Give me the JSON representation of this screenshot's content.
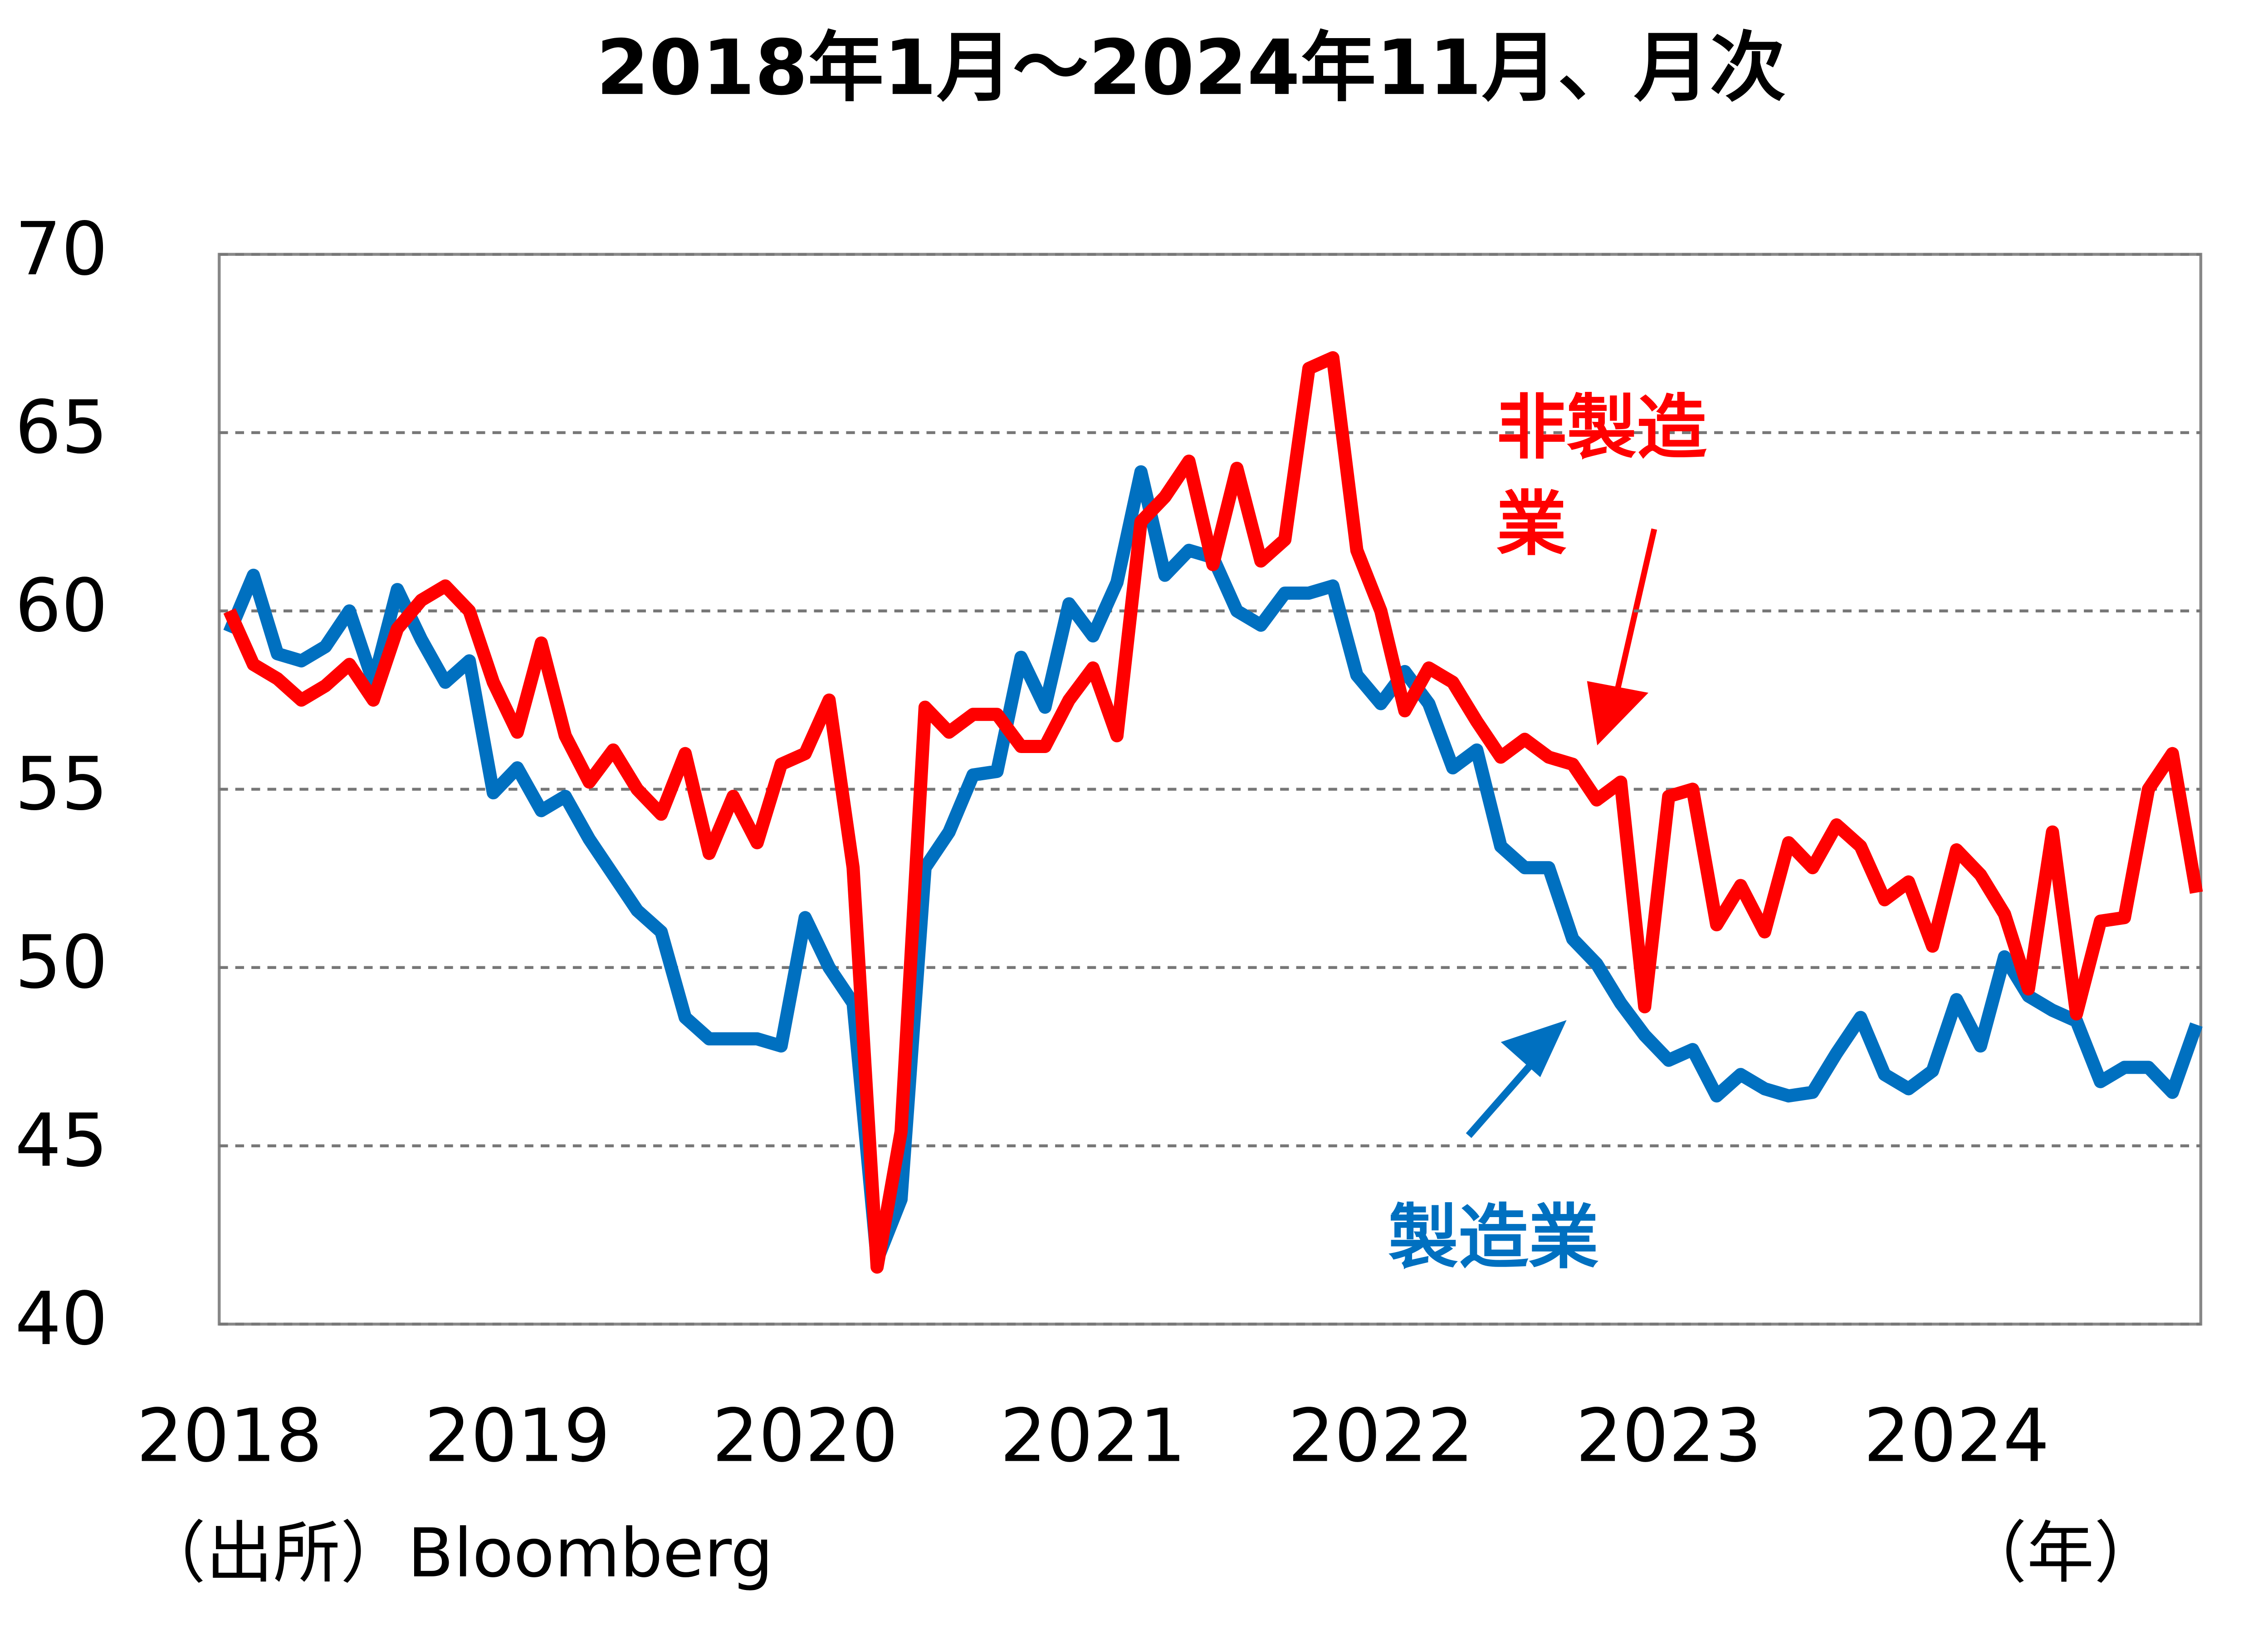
{
  "chart_data": {
    "type": "line",
    "title": "2018年1月～2024年11月、月次",
    "categories": [
      "2018",
      null,
      null,
      null,
      null,
      null,
      null,
      null,
      null,
      null,
      null,
      null,
      "2019",
      null,
      null,
      null,
      null,
      null,
      null,
      null,
      null,
      null,
      null,
      null,
      "2020",
      null,
      null,
      null,
      null,
      null,
      null,
      null,
      null,
      null,
      null,
      null,
      "2021",
      null,
      null,
      null,
      null,
      null,
      null,
      null,
      null,
      null,
      null,
      null,
      "2022",
      null,
      null,
      null,
      null,
      null,
      null,
      null,
      null,
      null,
      null,
      null,
      "2023",
      null,
      null,
      null,
      null,
      null,
      null,
      null,
      null,
      null,
      null,
      null,
      "2024",
      null,
      null,
      null,
      null,
      null,
      null,
      null,
      null,
      null,
      null
    ],
    "series": [
      {
        "name": "製造業",
        "color": "#0070c0",
        "values": [
          59.4,
          61.0,
          58.8,
          58.6,
          59.0,
          60.0,
          58.0,
          60.6,
          59.2,
          58.0,
          58.6,
          54.9,
          55.6,
          54.4,
          54.8,
          53.6,
          52.6,
          51.6,
          51.0,
          48.6,
          48.0,
          48.0,
          48.0,
          47.8,
          51.4,
          50.0,
          49.0,
          41.8,
          43.5,
          52.8,
          53.8,
          55.4,
          55.5,
          58.7,
          57.3,
          60.2,
          59.3,
          60.8,
          63.9,
          61.0,
          61.7,
          61.5,
          60.0,
          59.6,
          60.5,
          60.5,
          60.7,
          58.2,
          57.4,
          58.3,
          57.4,
          55.6,
          56.1,
          53.4,
          52.8,
          52.8,
          50.8,
          50.1,
          49.0,
          48.1,
          47.4,
          47.7,
          46.4,
          47.0,
          46.6,
          46.4,
          46.5,
          47.6,
          48.6,
          47.0,
          46.6,
          47.1,
          49.1,
          47.8,
          50.3,
          49.2,
          48.8,
          48.5,
          46.8,
          47.2,
          47.2,
          46.5,
          48.4
        ]
      },
      {
        "name": "非製造業",
        "color": "#ff0000",
        "values": [
          60.0,
          58.5,
          58.1,
          57.5,
          57.9,
          58.5,
          57.5,
          59.5,
          60.3,
          60.7,
          60.0,
          58.0,
          56.6,
          59.1,
          56.5,
          55.2,
          56.1,
          55.0,
          54.3,
          56.0,
          53.2,
          54.8,
          53.5,
          55.7,
          56.0,
          57.5,
          52.8,
          41.6,
          45.4,
          57.3,
          56.6,
          57.1,
          57.1,
          56.2,
          56.2,
          57.5,
          58.4,
          56.5,
          62.5,
          63.2,
          64.2,
          61.3,
          64.0,
          61.4,
          62.0,
          66.8,
          67.1,
          61.7,
          60.0,
          57.2,
          58.4,
          58.0,
          56.9,
          55.9,
          56.4,
          55.9,
          55.7,
          54.7,
          55.2,
          48.9,
          54.8,
          55.0,
          51.2,
          52.3,
          51.0,
          53.5,
          52.8,
          54.0,
          53.4,
          51.9,
          52.4,
          50.6,
          53.3,
          52.6,
          51.5,
          49.4,
          53.8,
          48.7,
          51.3,
          51.4,
          55.0,
          56.0,
          52.1
        ]
      }
    ],
    "annotations": {
      "manufacturing": [
        "製造業"
      ],
      "non_manufacturing": [
        "非製造",
        "業"
      ]
    },
    "source": "（出所）Bloomberg",
    "x_unit": "（年）",
    "ylim": [
      40,
      70
    ],
    "yticks": [
      40,
      45,
      50,
      55,
      60,
      65,
      70
    ],
    "grid": true
  }
}
